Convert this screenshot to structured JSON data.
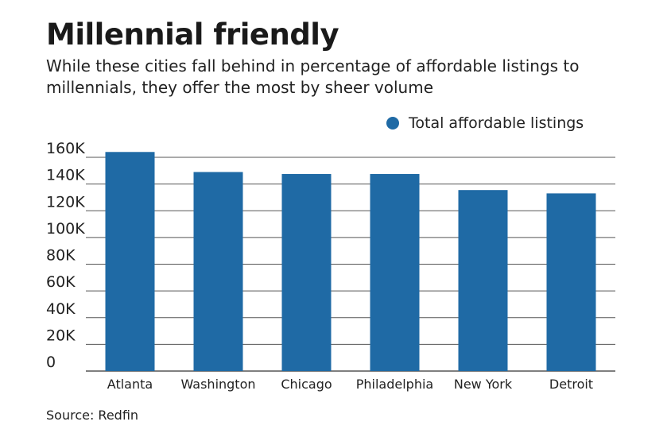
{
  "title": "Millennial friendly",
  "subtitle": "While these cities fall behind in percentage of affordable listings to millennials, they offer the most by sheer volume",
  "source": "Source: Redfin",
  "colors": {
    "bar": "#1f6aa5",
    "grid": "#555555",
    "axis": "#333333"
  },
  "chart_data": {
    "type": "bar",
    "categories": [
      "Atlanta",
      "Washington",
      "Chicago",
      "Philadelphia",
      "New York",
      "Detroit"
    ],
    "series": [
      {
        "name": "Total affordable listings",
        "values": [
          164000,
          149000,
          147500,
          147500,
          135500,
          133000
        ]
      }
    ],
    "yticks": [
      "0",
      "20K",
      "40K",
      "60K",
      "80K",
      "100K",
      "120K",
      "140K",
      "160K"
    ],
    "ylim": [
      0,
      160000
    ],
    "grid": true,
    "legend": "top-right"
  }
}
